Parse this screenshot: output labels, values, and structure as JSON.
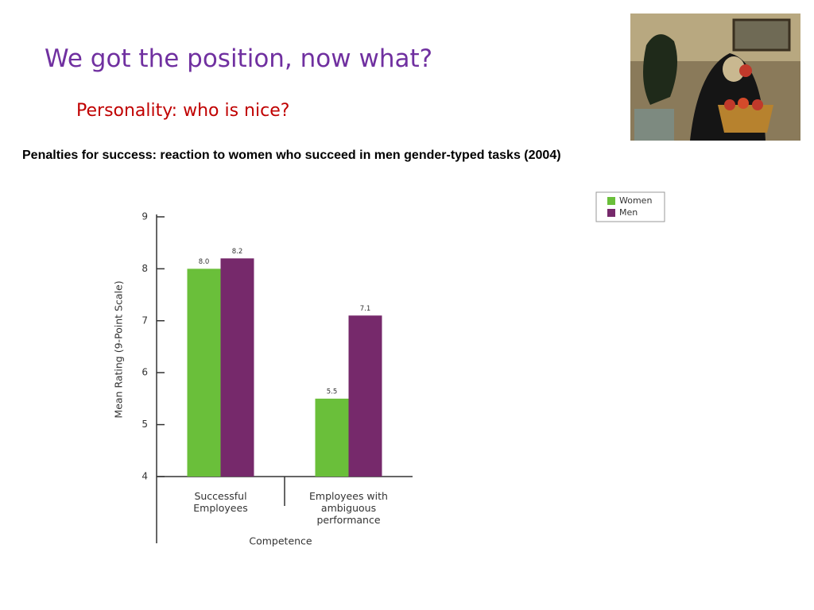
{
  "header": {
    "title": "We got the position, now what?",
    "subtitle": "Personality: who is nice?",
    "caption": "Penalties for success: reaction to women who succeed in men gender-typed tasks (2004)"
  },
  "chart_data": {
    "type": "bar",
    "y_label": "Mean Rating (9-Point Scale)",
    "x_label": "Competence",
    "categories": [
      "Successful\nEmployees",
      "Employees with\nambiguous\nperformance"
    ],
    "series": [
      {
        "name": "Women",
        "color": "#6abf3a",
        "values": [
          8.0,
          5.5
        ],
        "value_labels": [
          "8.0",
          "5.5"
        ]
      },
      {
        "name": "Men",
        "color": "#76296b",
        "values": [
          8.2,
          7.1
        ],
        "value_labels": [
          "8.2",
          "7.1"
        ]
      }
    ],
    "ylim": [
      4,
      9
    ],
    "yticks": [
      4,
      5,
      6,
      7,
      8,
      9
    ],
    "legend": "top-right"
  }
}
